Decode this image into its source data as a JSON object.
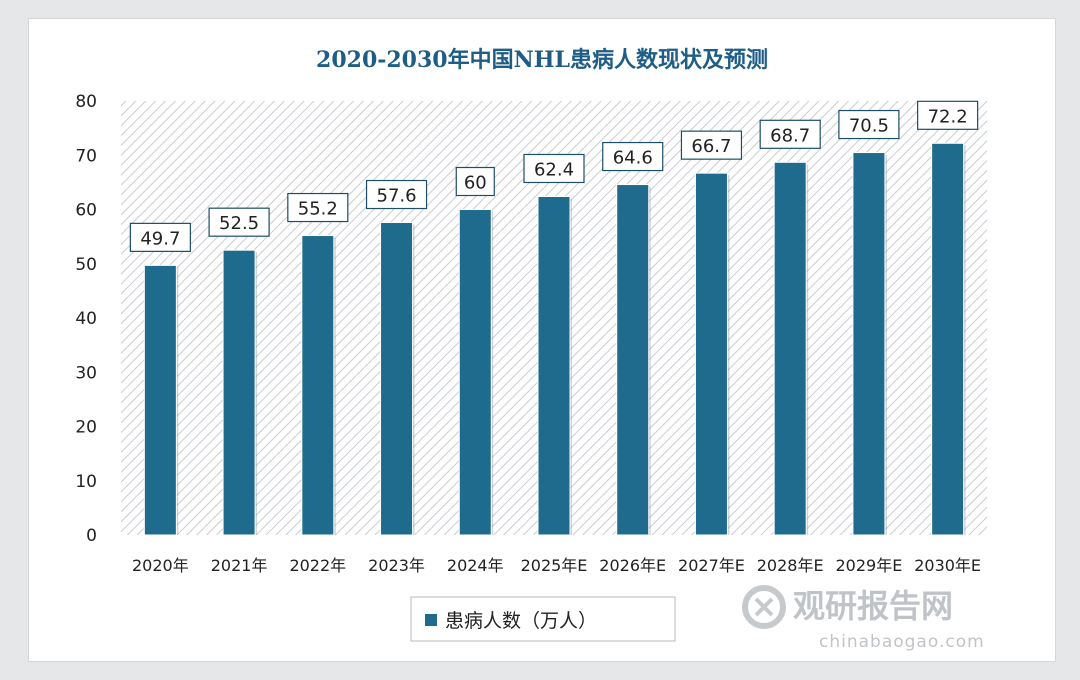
{
  "chart_data": {
    "type": "bar",
    "title": "2020-2030年中国NHL患病人数现状及预测",
    "categories": [
      "2020年",
      "2021年",
      "2022年",
      "2023年",
      "2024年",
      "2025年E",
      "2026年E",
      "2027年E",
      "2028年E",
      "2029年E",
      "2030年E"
    ],
    "series": [
      {
        "name": "患病人数（万人）",
        "values": [
          49.7,
          52.5,
          55.2,
          57.6,
          60,
          62.4,
          64.6,
          66.7,
          68.7,
          70.5,
          72.2
        ],
        "labels": [
          "49.7",
          "52.5",
          "55.2",
          "57.6",
          "60",
          "62.4",
          "64.6",
          "66.7",
          "68.7",
          "70.5",
          "72.2"
        ]
      }
    ],
    "yticks": [
      "0",
      "10",
      "20",
      "30",
      "40",
      "50",
      "60",
      "70",
      "80"
    ],
    "ylim": [
      0,
      80
    ],
    "grid": false,
    "legend_position": "bottom",
    "colors": {
      "bar": "#1f6b8e",
      "title": "#1d5d86",
      "hatch": "#c9ccd1"
    }
  },
  "watermark": {
    "logo_text": "观研报告网",
    "url_text": "chinabaogao.com"
  }
}
